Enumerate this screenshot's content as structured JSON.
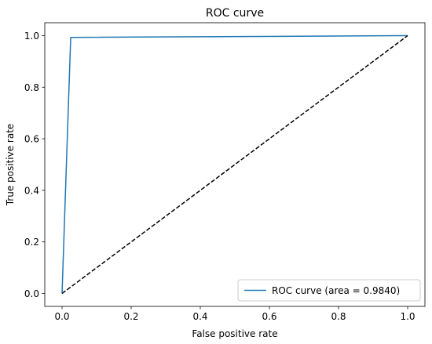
{
  "chart_data": {
    "type": "line",
    "title": "ROC curve",
    "xlabel": "False positive rate",
    "ylabel": "True positive rate",
    "xlim": [
      -0.05,
      1.05
    ],
    "ylim": [
      -0.05,
      1.05
    ],
    "xticks": [
      0.0,
      0.2,
      0.4,
      0.6,
      0.8,
      1.0
    ],
    "yticks": [
      0.0,
      0.2,
      0.4,
      0.6,
      0.8,
      1.0
    ],
    "xtick_labels": [
      "0.0",
      "0.2",
      "0.4",
      "0.6",
      "0.8",
      "1.0"
    ],
    "ytick_labels": [
      "0.0",
      "0.2",
      "0.4",
      "0.6",
      "0.8",
      "1.0"
    ],
    "grid": false,
    "legend_position": "lower-right",
    "series": [
      {
        "name": "ROC curve (area = 0.9840)",
        "color": "#1f77b4",
        "style": "solid",
        "x": [
          0.0,
          0.025,
          1.0
        ],
        "y": [
          0.0,
          0.993,
          1.0
        ]
      },
      {
        "color": "#000000",
        "style": "dashed",
        "x": [
          0.0,
          1.0
        ],
        "y": [
          0.0,
          1.0
        ]
      }
    ]
  }
}
